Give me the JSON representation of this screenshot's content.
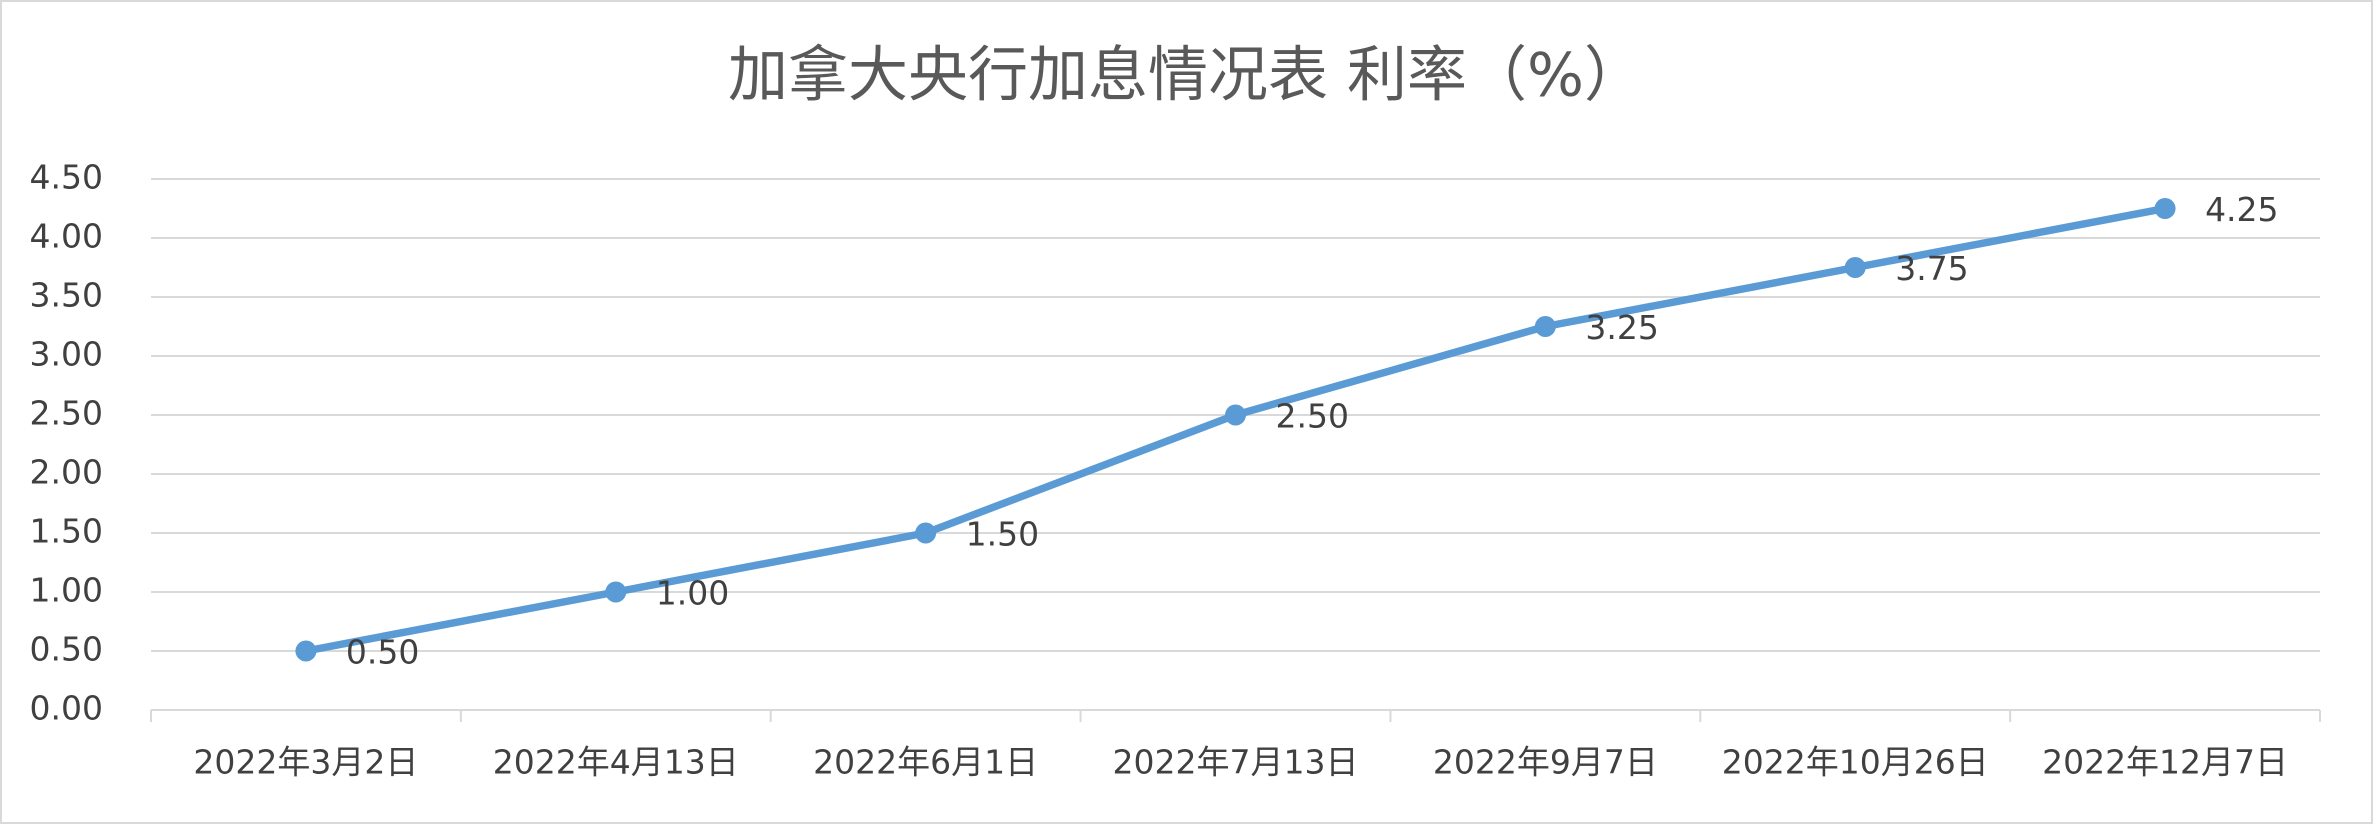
{
  "chart_data": {
    "type": "line",
    "title": "加拿大央行加息情况表 利率（%）",
    "categories": [
      "2022年3月2日",
      "2022年4月13日",
      "2022年6月1日",
      "2022年7月13日",
      "2022年9月7日",
      "2022年10月26日",
      "2022年12月7日"
    ],
    "values": [
      0.5,
      1,
      1.5,
      2.5,
      3.25,
      3.75,
      4.25
    ],
    "value_labels": [
      "0.50",
      "1.00",
      "1.50",
      "2.50",
      "3.25",
      "3.75",
      "4.25"
    ],
    "color": "#5b9bd5",
    "ylim": [
      0,
      4.5
    ],
    "yticks": [
      {
        "value": 0,
        "label": "0.00"
      },
      {
        "value": 0.5,
        "label": "0.50"
      },
      {
        "value": 1,
        "label": "1.00"
      },
      {
        "value": 1.5,
        "label": "1.50"
      },
      {
        "value": 2,
        "label": "2.00"
      },
      {
        "value": 2.5,
        "label": "2.50"
      },
      {
        "value": 3,
        "label": "3.00"
      },
      {
        "value": 3.5,
        "label": "3.50"
      },
      {
        "value": 4,
        "label": "4.00"
      },
      {
        "value": 4.5,
        "label": "4.50"
      }
    ],
    "grid": true
  }
}
